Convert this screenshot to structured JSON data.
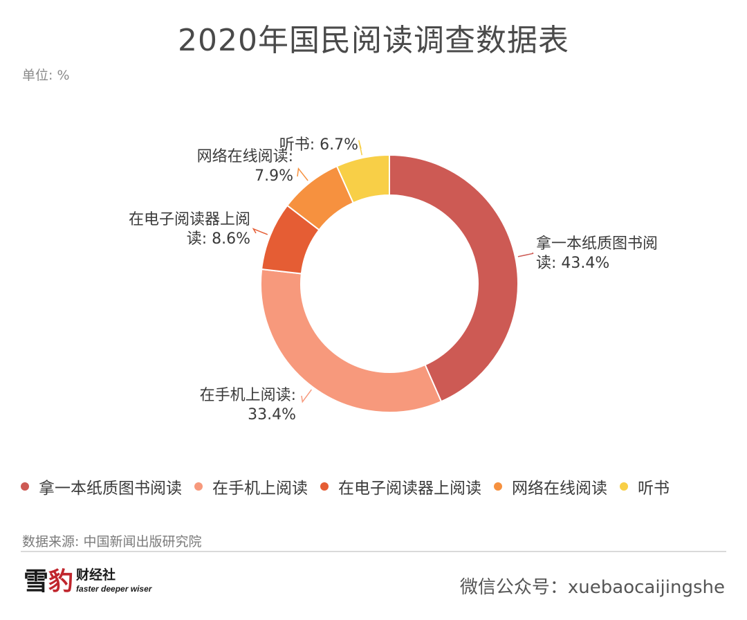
{
  "title": "2020年国民阅读调查数据表",
  "unit": "单位: %",
  "source": "数据来源: 中国新闻出版研究院",
  "footer": {
    "logo_main_a": "雪",
    "logo_main_b": "豹",
    "logo_sub": "财经社",
    "logo_tagline": "faster deeper wiser",
    "wechat": "微信公众号：xuebaocaijingshe"
  },
  "colors": {
    "paper": "#cd5a54",
    "mobile": "#f7997c",
    "ereader": "#e55d34",
    "online": "#f6913f",
    "audio": "#f8cf47"
  },
  "chart_data": {
    "type": "pie",
    "donut": true,
    "title": "2020年国民阅读调查数据表",
    "unit": "%",
    "legend_position": "bottom",
    "slices": [
      {
        "name": "拿一本纸质图书阅读",
        "value": 43.4,
        "label_lines": [
          "拿一本纸质图书阅",
          "读: 43.4%"
        ],
        "color": "#cd5a54"
      },
      {
        "name": "在手机上阅读",
        "value": 33.4,
        "label_lines": [
          "在手机上阅读:",
          "33.4%"
        ],
        "color": "#f7997c"
      },
      {
        "name": "在电子阅读器上阅读",
        "value": 8.6,
        "label_lines": [
          "在电子阅读器上阅",
          "读: 8.6%"
        ],
        "color": "#e55d34"
      },
      {
        "name": "网络在线阅读",
        "value": 7.9,
        "label_lines": [
          "网络在线阅读:",
          "7.9%"
        ],
        "color": "#f6913f"
      },
      {
        "name": "听书",
        "value": 6.7,
        "label_lines": [
          "听书: 6.7%"
        ],
        "color": "#f8cf47"
      }
    ]
  }
}
